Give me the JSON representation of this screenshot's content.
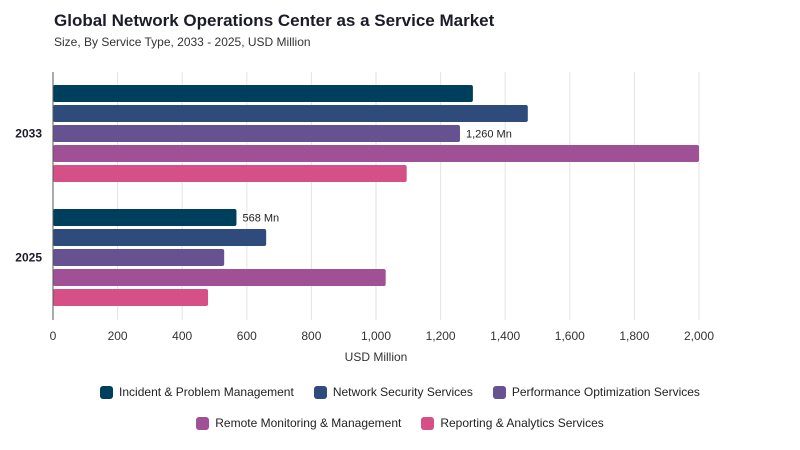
{
  "header": {
    "title": "Global Network Operations Center as a Service Market",
    "subtitle": "Size, By Service Type, 2033 - 2025, USD Million"
  },
  "chart_data": {
    "type": "bar",
    "orientation": "horizontal",
    "title": "Global Network Operations Center as a Service Market",
    "subtitle": "Size, By Service Type, 2033 - 2025, USD Million",
    "categories": [
      "2033",
      "2025"
    ],
    "xlabel": "USD Million",
    "ylabel": "",
    "xlim": [
      0,
      2000
    ],
    "xticks": [
      "0",
      "200",
      "400",
      "600",
      "800",
      "1,000",
      "1,200",
      "1,400",
      "1,600",
      "1,800",
      "2,000"
    ],
    "grid": true,
    "legend_position": "bottom",
    "series": [
      {
        "name": "Incident & Problem Management",
        "color": "#003f5c",
        "values": [
          1300,
          568
        ],
        "labels": [
          "",
          "568 Mn"
        ]
      },
      {
        "name": "Network Security Services",
        "color": "#2f4b7c",
        "values": [
          1470,
          660
        ],
        "labels": [
          "",
          ""
        ]
      },
      {
        "name": "Performance Optimization Services",
        "color": "#665191",
        "values": [
          1260,
          530
        ],
        "labels": [
          "1,260 Mn",
          ""
        ]
      },
      {
        "name": "Remote Monitoring & Management",
        "color": "#a05195",
        "values": [
          2000,
          1030
        ],
        "labels": [
          "",
          ""
        ]
      },
      {
        "name": "Reporting & Analytics Services",
        "color": "#d45087",
        "values": [
          1095,
          480
        ],
        "labels": [
          "",
          ""
        ]
      }
    ]
  }
}
